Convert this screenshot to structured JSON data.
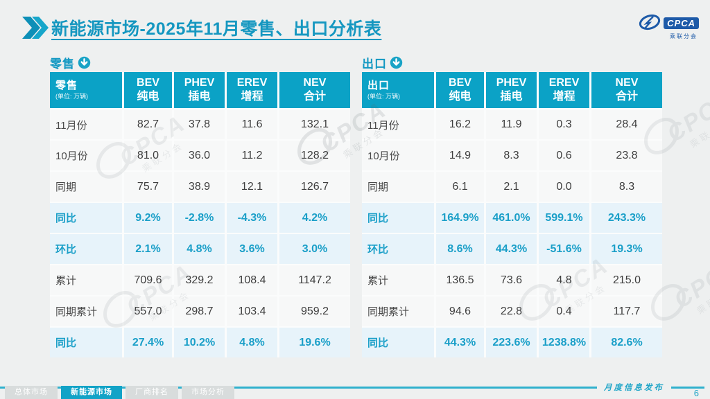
{
  "header": {
    "title": "新能源市场-2025年11月零售、出口分析表",
    "logo": {
      "name": "CPCA",
      "cn": "乘联分会"
    }
  },
  "icons": {
    "title_marker": "double-chevron-icon",
    "section_marker": "down-arrow-circle-icon"
  },
  "colors": {
    "accent_teal": "#0ba2c6",
    "highlight_row_bg": "#e7f3fa",
    "highlight_text": "#1a9fc8",
    "page_bg": "#eef0f0",
    "logo_blue": "#1d5aa8"
  },
  "watermark": {
    "text": "CPCA",
    "subtext": "乘联分会"
  },
  "tables": [
    {
      "section_label": "零售",
      "unit": "(单位: 万辆)",
      "columns": [
        {
          "en": "BEV",
          "cn": "纯电"
        },
        {
          "en": "PHEV",
          "cn": "插电"
        },
        {
          "en": "EREV",
          "cn": "增程"
        },
        {
          "en": "NEV",
          "cn": "合计"
        }
      ],
      "rows": [
        {
          "label": "11月份",
          "highlight": false,
          "values": [
            "82.7",
            "37.8",
            "11.6",
            "132.1"
          ]
        },
        {
          "label": "10月份",
          "highlight": false,
          "values": [
            "81.0",
            "36.0",
            "11.2",
            "128.2"
          ]
        },
        {
          "label": "同期",
          "highlight": false,
          "values": [
            "75.7",
            "38.9",
            "12.1",
            "126.7"
          ]
        },
        {
          "label": "同比",
          "highlight": true,
          "values": [
            "9.2%",
            "-2.8%",
            "-4.3%",
            "4.2%"
          ]
        },
        {
          "label": "环比",
          "highlight": true,
          "values": [
            "2.1%",
            "4.8%",
            "3.6%",
            "3.0%"
          ]
        },
        {
          "label": "累计",
          "highlight": false,
          "values": [
            "709.6",
            "329.2",
            "108.4",
            "1147.2"
          ]
        },
        {
          "label": "同期累计",
          "highlight": false,
          "values": [
            "557.0",
            "298.7",
            "103.4",
            "959.2"
          ]
        },
        {
          "label": "同比",
          "highlight": true,
          "values": [
            "27.4%",
            "10.2%",
            "4.8%",
            "19.6%"
          ]
        }
      ]
    },
    {
      "section_label": "出口",
      "unit": "(单位: 万辆)",
      "columns": [
        {
          "en": "BEV",
          "cn": "纯电"
        },
        {
          "en": "PHEV",
          "cn": "插电"
        },
        {
          "en": "EREV",
          "cn": "增程"
        },
        {
          "en": "NEV",
          "cn": "合计"
        }
      ],
      "rows": [
        {
          "label": "11月份",
          "highlight": false,
          "values": [
            "16.2",
            "11.9",
            "0.3",
            "28.4"
          ]
        },
        {
          "label": "10月份",
          "highlight": false,
          "values": [
            "14.9",
            "8.3",
            "0.6",
            "23.8"
          ]
        },
        {
          "label": "同期",
          "highlight": false,
          "values": [
            "6.1",
            "2.1",
            "0.0",
            "8.3"
          ]
        },
        {
          "label": "同比",
          "highlight": true,
          "values": [
            "164.9%",
            "461.0%",
            "599.1%",
            "243.3%"
          ]
        },
        {
          "label": "环比",
          "highlight": true,
          "values": [
            "8.6%",
            "44.3%",
            "-51.6%",
            "19.3%"
          ]
        },
        {
          "label": "累计",
          "highlight": false,
          "values": [
            "136.5",
            "73.6",
            "4.8",
            "215.0"
          ]
        },
        {
          "label": "同期累计",
          "highlight": false,
          "values": [
            "94.6",
            "22.8",
            "0.4",
            "117.7"
          ]
        },
        {
          "label": "同比",
          "highlight": true,
          "values": [
            "44.3%",
            "223.6%",
            "1238.8%",
            "82.6%"
          ]
        }
      ]
    }
  ],
  "footer": {
    "tabs": [
      {
        "label": "总体市场",
        "active": false
      },
      {
        "label": "新能源市场",
        "active": true
      },
      {
        "label": "厂商排名",
        "active": false
      },
      {
        "label": "市场分析",
        "active": false
      }
    ],
    "publication": "月度信息发布",
    "page_number": "6"
  }
}
